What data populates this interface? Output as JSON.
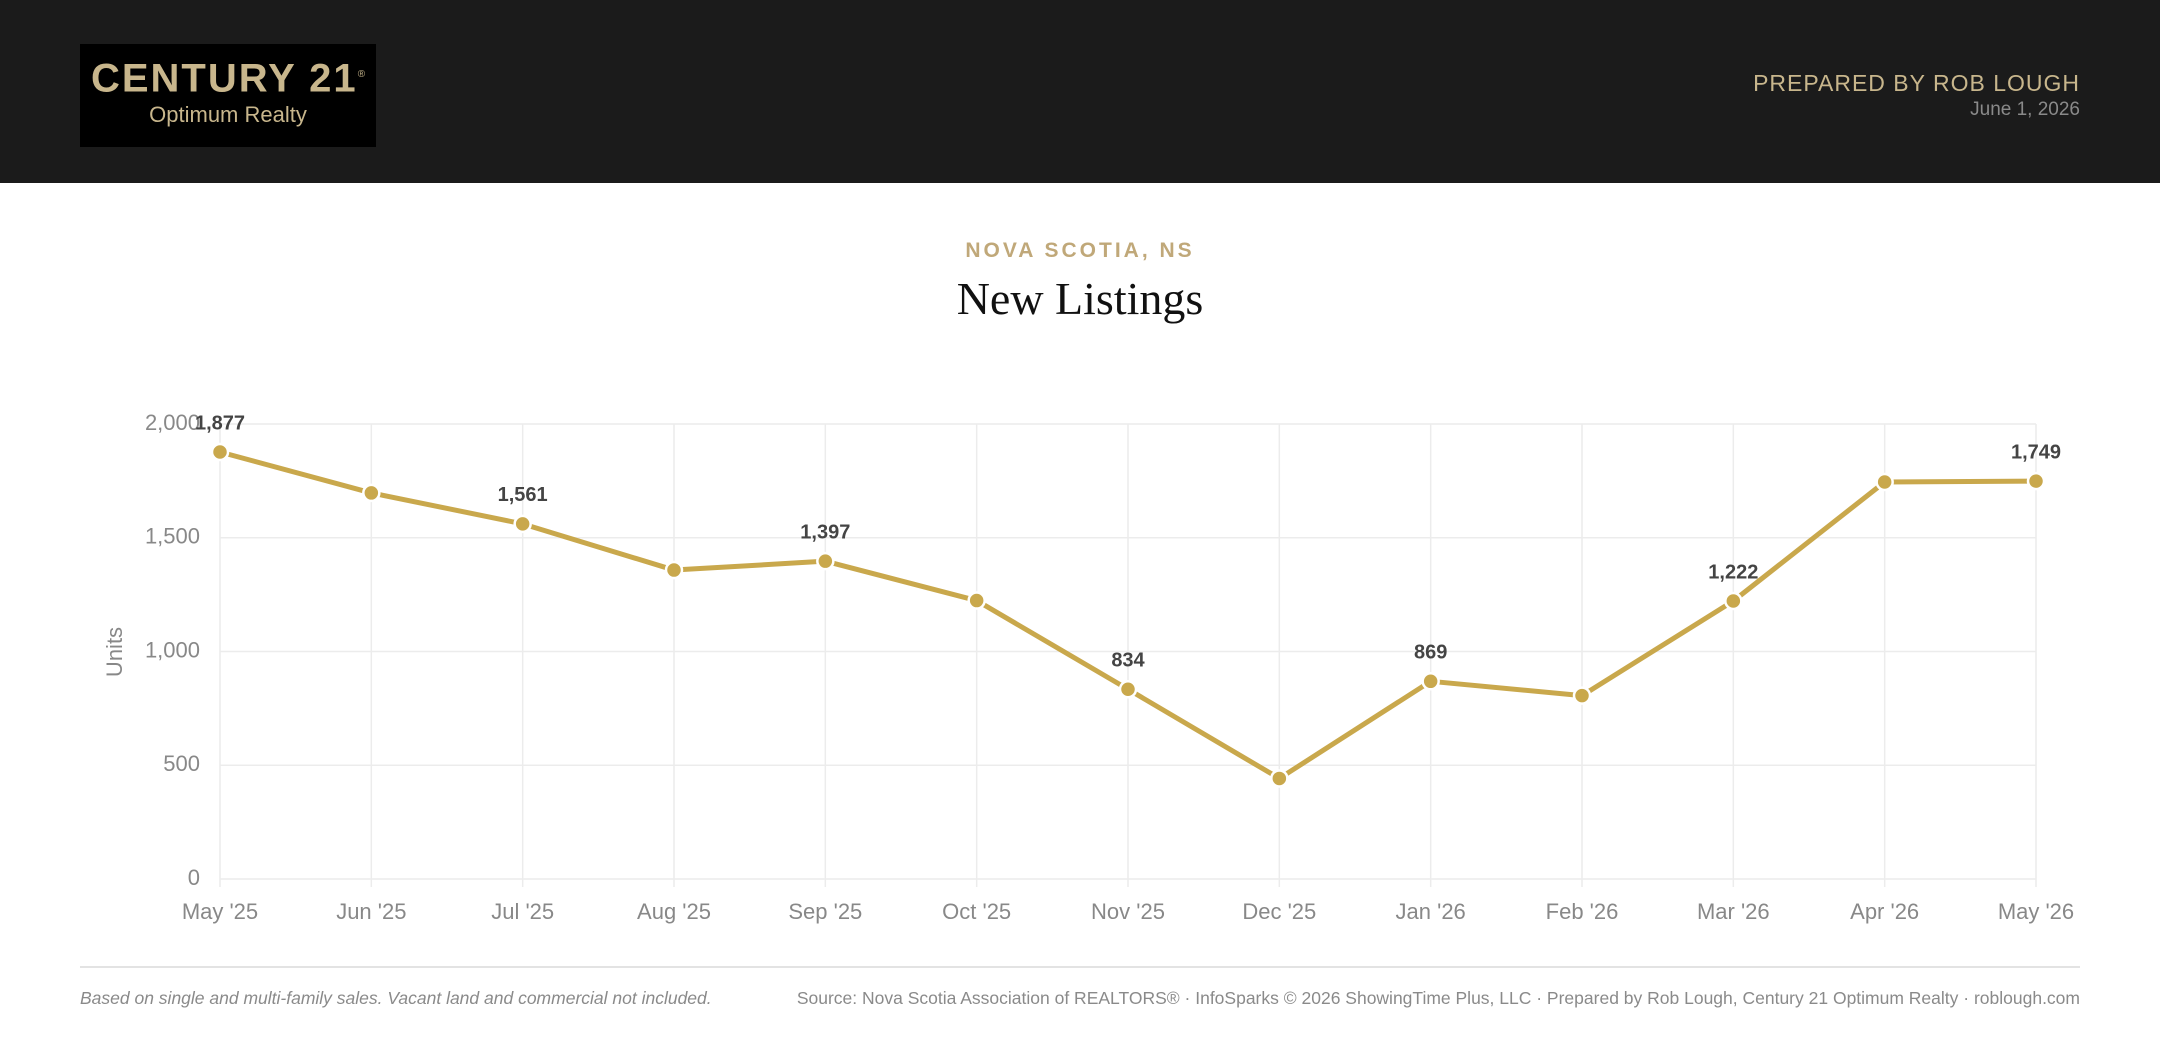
{
  "header": {
    "logo_brand": "CENTURY 21",
    "logo_mark": "®",
    "logo_office": "Optimum Realty",
    "prepared_by": "PREPARED BY ROB LOUGH",
    "date": "June 1, 2026"
  },
  "chart_data": {
    "type": "line",
    "subtitle": "NOVA SCOTIA, NS",
    "title": "New Listings",
    "y_label": "Units",
    "categories": [
      "May '25",
      "Jun '25",
      "Jul '25",
      "Aug '25",
      "Sep '25",
      "Oct '25",
      "Nov '25",
      "Dec '25",
      "Jan '26",
      "Feb '26",
      "Mar '26",
      "Apr '26",
      "May '26"
    ],
    "values": [
      1877,
      1697,
      1561,
      1358,
      1397,
      1224,
      834,
      442,
      869,
      806,
      1222,
      1745,
      1749
    ],
    "value_labels": [
      "1,877",
      null,
      "1,561",
      null,
      "1,397",
      null,
      "834",
      null,
      "869",
      null,
      "1,222",
      null,
      "1,749"
    ],
    "color": "#c9a84c",
    "ylim": [
      0,
      2000
    ],
    "yticks": [
      0,
      500,
      {
        "value": 1000,
        "label": "1,000"
      },
      {
        "value": 1500,
        "label": "1,500"
      },
      {
        "value": 2000,
        "label": "2,000"
      }
    ],
    "grid": true
  },
  "footer": {
    "note": "Based on single and multi-family sales. Vacant land and commercial not included.",
    "source": "Source: Nova Scotia Association of REALTORS® · InfoSparks © 2026 ShowingTime Plus, LLC · Prepared by Rob Lough, Century 21 Optimum Realty · roblough.com"
  }
}
